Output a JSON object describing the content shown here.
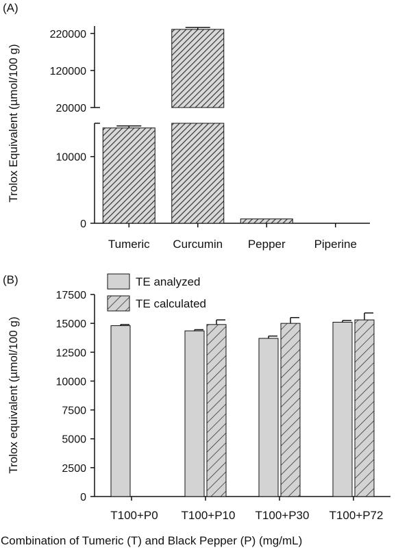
{
  "chart_data": [
    {
      "panel": "(A)",
      "type": "bar",
      "ylabel": "Trolox Equivalent (µmol/100 g)",
      "categories": [
        "Tumeric",
        "Curcumin",
        "Pepper",
        "Piperine"
      ],
      "values": [
        14300,
        231000,
        650,
        0
      ],
      "errors": [
        300,
        5000,
        0,
        0
      ],
      "broken_axis": {
        "lower": {
          "ylim": [
            0,
            15000
          ],
          "ticks": [
            0,
            10000
          ],
          "tick_labels": [
            "0",
            "10000"
          ]
        },
        "upper": {
          "ylim": [
            20000,
            240000
          ],
          "ticks": [
            20000,
            120000,
            220000
          ],
          "tick_labels": [
            "20000",
            "120000",
            "220000"
          ]
        }
      },
      "pattern": "diagonal hatch",
      "color": "#555555"
    },
    {
      "panel": "(B)",
      "type": "bar",
      "ylabel": "Trolox equivalent (µmol/100 g)",
      "xlabel": "Combination of Tumeric (T) and Black Pepper (P) (mg/mL)",
      "categories": [
        "T100+P0",
        "T100+P10",
        "T100+P30",
        "T100+P72"
      ],
      "series": [
        {
          "name": "TE analyzed",
          "values": [
            14800,
            14350,
            13700,
            15100
          ],
          "errors": [
            100,
            100,
            200,
            150
          ],
          "color": "#d3d3d3",
          "pattern": "solid"
        },
        {
          "name": "TE calculated",
          "values": [
            null,
            14900,
            15000,
            15300
          ],
          "errors": [
            null,
            400,
            500,
            600
          ],
          "color": "#d3d3d3",
          "pattern": "diagonal hatch"
        }
      ],
      "ylim": [
        0,
        17500
      ],
      "yticks": [
        0,
        2500,
        5000,
        7500,
        10000,
        12500,
        15000,
        17500
      ],
      "ytick_labels": [
        "0",
        "2500",
        "5000",
        "7500",
        "10000",
        "12500",
        "15000",
        "17500"
      ],
      "legend": "top-left"
    }
  ]
}
